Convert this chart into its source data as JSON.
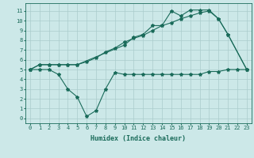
{
  "bg_color": "#cce8e8",
  "grid_color": "#aacccc",
  "line_color": "#1a6b5a",
  "line_width": 0.8,
  "marker": "*",
  "marker_size": 3,
  "xlabel": "Humidex (Indice chaleur)",
  "xlabel_fontsize": 6,
  "xlim": [
    -0.5,
    23.5
  ],
  "ylim": [
    -0.5,
    11.8
  ],
  "xticks": [
    0,
    1,
    2,
    3,
    4,
    5,
    6,
    7,
    8,
    9,
    10,
    11,
    12,
    13,
    14,
    15,
    16,
    17,
    18,
    19,
    20,
    21,
    22,
    23
  ],
  "yticks": [
    0,
    1,
    2,
    3,
    4,
    5,
    6,
    7,
    8,
    9,
    10,
    11
  ],
  "tick_fontsize": 5,
  "line1_x": [
    0,
    1,
    2,
    3,
    4,
    5,
    10,
    11,
    12,
    13,
    14,
    15,
    16,
    17,
    18,
    19,
    20,
    21,
    23
  ],
  "line1_y": [
    5.0,
    5.5,
    5.5,
    5.5,
    5.5,
    5.5,
    7.5,
    8.3,
    8.6,
    9.5,
    9.5,
    11.0,
    10.5,
    11.1,
    11.1,
    11.1,
    10.2,
    8.6,
    5.0
  ],
  "line2_x": [
    0,
    1,
    2,
    3,
    4,
    5,
    6,
    7,
    8,
    9,
    10,
    11,
    12,
    13,
    14,
    15,
    16,
    17,
    18,
    19,
    20,
    21,
    23
  ],
  "line2_y": [
    5.0,
    5.5,
    5.5,
    5.5,
    5.5,
    5.5,
    5.8,
    6.2,
    6.8,
    7.2,
    7.8,
    8.2,
    8.5,
    9.0,
    9.5,
    9.8,
    10.2,
    10.5,
    10.8,
    11.0,
    10.2,
    8.6,
    5.0
  ],
  "line3_x": [
    0,
    1,
    2,
    3,
    4,
    5,
    6,
    7,
    8,
    9,
    10,
    11,
    12,
    13,
    14,
    15,
    16,
    17,
    18,
    19,
    20,
    21,
    22,
    23
  ],
  "line3_y": [
    5.0,
    5.0,
    5.0,
    4.5,
    3.0,
    2.2,
    0.2,
    0.8,
    3.0,
    4.7,
    4.5,
    4.5,
    4.5,
    4.5,
    4.5,
    4.5,
    4.5,
    4.5,
    4.5,
    4.8,
    4.8,
    5.0,
    5.0,
    5.0
  ]
}
